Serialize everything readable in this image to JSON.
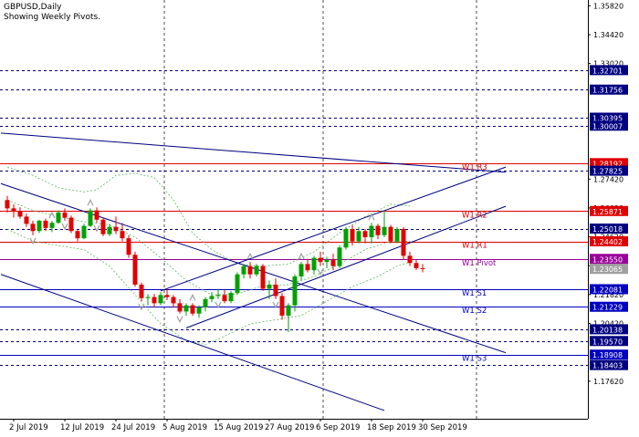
{
  "header": {
    "symbol_line": "GBPUSD,Daily",
    "info_line": "Showing Weekly Pivots."
  },
  "chart_data": {
    "type": "candlestick",
    "title": "GBPUSD,Daily",
    "subtitle": "Showing Weekly Pivots.",
    "ylim": [
      1.158,
      1.361
    ],
    "price_ticks": [
      "1.35820",
      "1.34420",
      "1.33020",
      "1.27420",
      "1.26020",
      "1.24620",
      "1.23220",
      "1.21820",
      "1.20420",
      "1.17620"
    ],
    "x_ticks": [
      {
        "label": "2 Jul 2019",
        "i": 1
      },
      {
        "label": "12 Jul 2019",
        "i": 9
      },
      {
        "label": "24 Jul 2019",
        "i": 17
      },
      {
        "label": "5 Aug 2019",
        "i": 25
      },
      {
        "label": "15 Aug 2019",
        "i": 33
      },
      {
        "label": "27 Aug 2019",
        "i": 41
      },
      {
        "label": "6 Sep 2019",
        "i": 49
      },
      {
        "label": "18 Sep 2019",
        "i": 57
      },
      {
        "label": "30 Sep 2019",
        "i": 65
      }
    ],
    "price_levels": [
      {
        "label": "1.32701",
        "value": 1.32701,
        "style": "dash",
        "color": "#000080",
        "badge": "#000080"
      },
      {
        "label": "1.31756",
        "value": 1.31756,
        "style": "dash",
        "color": "#000080",
        "badge": "#000080"
      },
      {
        "label": "1.30395",
        "value": 1.30395,
        "style": "dash",
        "color": "#000080",
        "badge": "#000080"
      },
      {
        "label": "1.30007",
        "value": 1.30007,
        "style": "dash",
        "color": "#000080",
        "badge": "#000080"
      },
      {
        "label": "1.28192",
        "value": 1.28192,
        "style": "solid",
        "color": "#e00000",
        "badge": "#e00000"
      },
      {
        "label": "1.27825",
        "value": 1.27825,
        "style": "dash",
        "color": "#000080",
        "badge": "#000080"
      },
      {
        "label": "1.25871",
        "value": 1.25871,
        "style": "solid",
        "color": "#e00000",
        "badge": "#e00000"
      },
      {
        "label": "1.25018",
        "value": 1.25018,
        "style": "dash",
        "color": "#000080",
        "badge": "#000080"
      },
      {
        "label": "1.24402",
        "value": 1.24402,
        "style": "solid",
        "color": "#e00000",
        "badge": "#e00000"
      },
      {
        "label": "1.23550",
        "value": 1.2355,
        "style": "solid",
        "color": "#990099",
        "badge": "#990099"
      },
      {
        "label": "1.23065",
        "value": 1.23065,
        "style": "none",
        "color": "#a0a0a0",
        "badge": "#a0a0a0"
      },
      {
        "label": "1.22081",
        "value": 1.22081,
        "style": "solid",
        "color": "#0000c0",
        "badge": "#0000c0"
      },
      {
        "label": "1.21229",
        "value": 1.21229,
        "style": "solid",
        "color": "#0000c0",
        "badge": "#0000c0"
      },
      {
        "label": "1.20138",
        "value": 1.20138,
        "style": "dash",
        "color": "#000080",
        "badge": "#000080"
      },
      {
        "label": "1.19570",
        "value": 1.1957,
        "style": "dash",
        "color": "#000080",
        "badge": "#000080"
      },
      {
        "label": "1.18908",
        "value": 1.18908,
        "style": "solid",
        "color": "#0000c0",
        "badge": "#0000c0"
      },
      {
        "label": "1.18403",
        "value": 1.18403,
        "style": "dash",
        "color": "#000080",
        "badge": "#000080"
      }
    ],
    "pivot_labels": [
      {
        "label": "W1 R3",
        "value": 1.28192,
        "color": "#e00000"
      },
      {
        "label": "W1 R2",
        "value": 1.25871,
        "color": "#e00000"
      },
      {
        "label": "W1 R1",
        "value": 1.24402,
        "color": "#e00000"
      },
      {
        "label": "W1 Pivot",
        "value": 1.2355,
        "color": "#990099"
      },
      {
        "label": "W1 S1",
        "value": 1.22081,
        "color": "#0000c0"
      },
      {
        "label": "W1 S2",
        "value": 1.21229,
        "color": "#0000c0"
      },
      {
        "label": "W1 S3",
        "value": 1.18908,
        "color": "#0000c0"
      }
    ],
    "candles": [
      [
        1.264,
        1.266,
        1.258,
        1.26
      ],
      [
        1.26,
        1.262,
        1.2555,
        1.2585
      ],
      [
        1.2585,
        1.2605,
        1.255,
        1.256
      ],
      [
        1.256,
        1.2575,
        1.251,
        1.2525
      ],
      [
        1.2525,
        1.254,
        1.247,
        1.249
      ],
      [
        1.249,
        1.2545,
        1.248,
        1.254
      ],
      [
        1.254,
        1.255,
        1.249,
        1.2505
      ],
      [
        1.2505,
        1.254,
        1.2485,
        1.253
      ],
      [
        1.253,
        1.259,
        1.2525,
        1.258
      ],
      [
        1.258,
        1.26,
        1.254,
        1.2555
      ],
      [
        1.2555,
        1.2565,
        1.248,
        1.249
      ],
      [
        1.249,
        1.25,
        1.244,
        1.2455
      ],
      [
        1.2455,
        1.2525,
        1.245,
        1.2515
      ],
      [
        1.2515,
        1.26,
        1.251,
        1.259
      ],
      [
        1.259,
        1.2605,
        1.253,
        1.2545
      ],
      [
        1.2545,
        1.2555,
        1.2465,
        1.2475
      ],
      [
        1.2475,
        1.2525,
        1.2465,
        1.251
      ],
      [
        1.251,
        1.256,
        1.2475,
        1.249
      ],
      [
        1.249,
        1.253,
        1.244,
        1.2455
      ],
      [
        1.2455,
        1.247,
        1.236,
        1.2375
      ],
      [
        1.2375,
        1.239,
        1.222,
        1.223
      ],
      [
        1.223,
        1.224,
        1.215,
        1.2165
      ],
      [
        1.2165,
        1.2185,
        1.213,
        1.217
      ],
      [
        1.217,
        1.2185,
        1.212,
        1.214
      ],
      [
        1.214,
        1.2195,
        1.213,
        1.218
      ],
      [
        1.218,
        1.221,
        1.2155,
        1.217
      ],
      [
        1.217,
        1.218,
        1.212,
        1.214
      ],
      [
        1.214,
        1.216,
        1.209,
        1.21
      ],
      [
        1.21,
        1.214,
        1.208,
        1.213
      ],
      [
        1.213,
        1.214,
        1.208,
        1.209
      ],
      [
        1.209,
        1.213,
        1.207,
        1.212
      ],
      [
        1.212,
        1.217,
        1.21,
        1.216
      ],
      [
        1.216,
        1.2195,
        1.2145,
        1.2175
      ],
      [
        1.2175,
        1.221,
        1.216,
        1.218
      ],
      [
        1.218,
        1.2205,
        1.214,
        1.215
      ],
      [
        1.215,
        1.22,
        1.214,
        1.219
      ],
      [
        1.219,
        1.229,
        1.218,
        1.228
      ],
      [
        1.228,
        1.233,
        1.226,
        1.232
      ],
      [
        1.232,
        1.234,
        1.226,
        1.228
      ],
      [
        1.228,
        1.233,
        1.227,
        1.232
      ],
      [
        1.232,
        1.233,
        1.22,
        1.221
      ],
      [
        1.221,
        1.225,
        1.216,
        1.223
      ],
      [
        1.223,
        1.226,
        1.216,
        1.2175
      ],
      [
        1.2175,
        1.219,
        1.206,
        1.208
      ],
      [
        1.208,
        1.214,
        1.2,
        1.213
      ],
      [
        1.213,
        1.228,
        1.21,
        1.227
      ],
      [
        1.227,
        1.234,
        1.225,
        1.233
      ],
      [
        1.233,
        1.2355,
        1.229,
        1.23
      ],
      [
        1.23,
        1.237,
        1.228,
        1.236
      ],
      [
        1.236,
        1.239,
        1.232,
        1.234
      ],
      [
        1.234,
        1.2365,
        1.231,
        1.235
      ],
      [
        1.235,
        1.238,
        1.23,
        1.232
      ],
      [
        1.232,
        1.242,
        1.231,
        1.241
      ],
      [
        1.241,
        1.251,
        1.24,
        1.25
      ],
      [
        1.25,
        1.252,
        1.242,
        1.244
      ],
      [
        1.244,
        1.251,
        1.243,
        1.249
      ],
      [
        1.249,
        1.25,
        1.243,
        1.246
      ],
      [
        1.246,
        1.253,
        1.243,
        1.2515
      ],
      [
        1.2515,
        1.2525,
        1.245,
        1.247
      ],
      [
        1.247,
        1.259,
        1.246,
        1.251
      ],
      [
        1.251,
        1.252,
        1.243,
        1.244
      ],
      [
        1.244,
        1.251,
        1.243,
        1.25
      ],
      [
        1.25,
        1.251,
        1.235,
        1.237
      ],
      [
        1.237,
        1.239,
        1.232,
        1.2335
      ],
      [
        1.2335,
        1.235,
        1.23,
        1.231
      ],
      [
        1.231,
        1.233,
        1.229,
        1.2307
      ]
    ],
    "ma_mid": [
      [
        0,
        1.264
      ],
      [
        4,
        1.259
      ],
      [
        8,
        1.256
      ],
      [
        12,
        1.2535
      ],
      [
        16,
        1.252
      ],
      [
        20,
        1.246
      ],
      [
        24,
        1.236
      ],
      [
        28,
        1.225
      ],
      [
        32,
        1.218
      ],
      [
        36,
        1.2185
      ],
      [
        40,
        1.2225
      ],
      [
        44,
        1.223
      ],
      [
        48,
        1.227
      ],
      [
        52,
        1.233
      ],
      [
        56,
        1.24
      ],
      [
        60,
        1.244
      ],
      [
        63,
        1.244
      ]
    ],
    "ma_upper": [
      [
        0,
        1.28
      ],
      [
        4,
        1.276
      ],
      [
        8,
        1.27
      ],
      [
        12,
        1.268
      ],
      [
        14,
        1.269
      ],
      [
        17,
        1.276
      ],
      [
        20,
        1.277
      ],
      [
        23,
        1.275
      ],
      [
        26,
        1.264
      ],
      [
        29,
        1.248
      ],
      [
        32,
        1.24
      ],
      [
        36,
        1.233
      ],
      [
        40,
        1.232
      ],
      [
        44,
        1.233
      ],
      [
        48,
        1.239
      ],
      [
        52,
        1.248
      ],
      [
        56,
        1.256
      ],
      [
        60,
        1.262
      ],
      [
        63,
        1.261
      ]
    ],
    "ma_lower": [
      [
        0,
        1.25
      ],
      [
        4,
        1.244
      ],
      [
        8,
        1.242
      ],
      [
        12,
        1.24
      ],
      [
        16,
        1.232
      ],
      [
        20,
        1.218
      ],
      [
        24,
        1.204
      ],
      [
        28,
        1.196
      ],
      [
        31,
        1.194
      ],
      [
        34,
        1.198
      ],
      [
        38,
        1.204
      ],
      [
        42,
        1.206
      ],
      [
        46,
        1.208
      ],
      [
        50,
        1.215
      ],
      [
        54,
        1.222
      ],
      [
        58,
        1.227
      ],
      [
        61,
        1.232
      ],
      [
        63,
        1.234
      ]
    ],
    "trend_lines": [
      {
        "from": [
          -1,
          1.2965
        ],
        "to": [
          78,
          1.2775
        ]
      },
      {
        "from": [
          -1,
          1.272
        ],
        "to": [
          78,
          1.19
        ]
      },
      {
        "from": [
          -1,
          1.228
        ],
        "to": [
          59,
          1.162
        ]
      },
      {
        "from": [
          24,
          1.22
        ],
        "to": [
          78,
          1.28
        ]
      },
      {
        "from": [
          28,
          1.202
        ],
        "to": [
          78,
          1.261
        ]
      }
    ],
    "fractal_up": [
      7,
      13,
      29,
      38,
      46,
      57
    ],
    "fractal_down": [
      4,
      9,
      14,
      21,
      27,
      33,
      42,
      49
    ]
  },
  "colors": {
    "bull": "#00a000",
    "bear": "#e00000",
    "trend": "#000080",
    "ma": "#5fb65f",
    "grid": "#000000",
    "fractal": "#a0a0a0"
  }
}
